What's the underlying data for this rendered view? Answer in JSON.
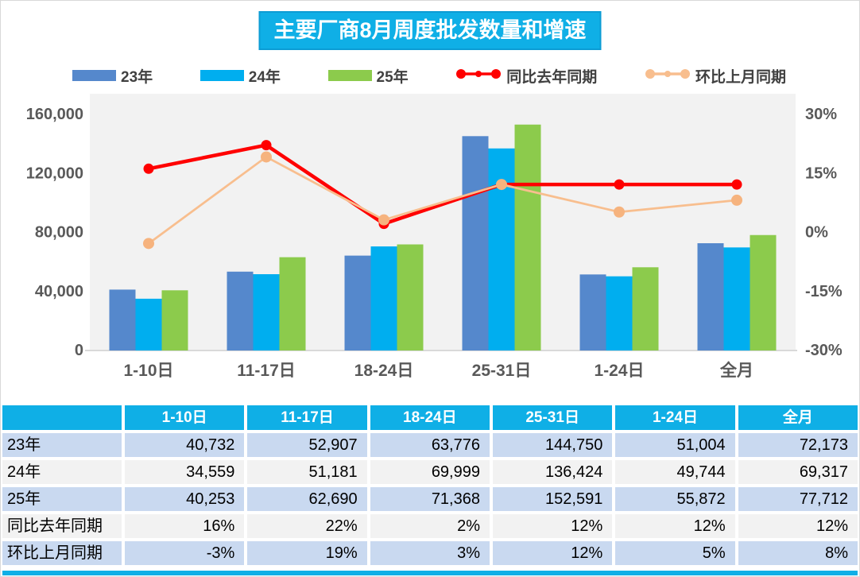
{
  "title": "主要厂商8月周度批发数量和增速",
  "colors": {
    "accent_cyan": "#0fafe6",
    "bar_23": "#5588cc",
    "bar_24": "#00aeef",
    "bar_25": "#8ccb4c",
    "line_yoy": "#ff0000",
    "line_mom": "#f8be8e",
    "line_mom_marker": "#f6b37e",
    "plot_bg": "#f2f2f2",
    "axis_text": "#595959",
    "row_blue": "#c9d9f0",
    "row_gray": "#f2f2f2"
  },
  "legend": [
    {
      "label": "23年",
      "type": "bar",
      "color": "#5588cc"
    },
    {
      "label": "24年",
      "type": "bar",
      "color": "#00aeef"
    },
    {
      "label": "25年",
      "type": "bar",
      "color": "#8ccb4c"
    },
    {
      "label": "同比去年同期",
      "type": "line",
      "color": "#ff0000"
    },
    {
      "label": "环比上月同期",
      "type": "line",
      "color": "#f8be8e"
    }
  ],
  "chart_data": {
    "type": "bar",
    "subtype": "grouped-bars-with-lines",
    "title": "主要厂商8月周度批发数量和增速",
    "categories": [
      "1-10日",
      "11-17日",
      "18-24日",
      "25-31日",
      "1-24日",
      "全月"
    ],
    "series": [
      {
        "name": "23年",
        "kind": "bar",
        "axis": "left",
        "color": "#5588cc",
        "values": [
          40732,
          52907,
          63776,
          144750,
          51004,
          72173
        ]
      },
      {
        "name": "24年",
        "kind": "bar",
        "axis": "left",
        "color": "#00aeef",
        "values": [
          34559,
          51181,
          69999,
          136424,
          49744,
          69317
        ]
      },
      {
        "name": "25年",
        "kind": "bar",
        "axis": "left",
        "color": "#8ccb4c",
        "values": [
          40253,
          62690,
          71368,
          152591,
          55872,
          77712
        ]
      },
      {
        "name": "同比去年同期",
        "kind": "line",
        "axis": "right",
        "color": "#ff0000",
        "marker_color": "#ff0000",
        "values": [
          16,
          22,
          2,
          12,
          12,
          12
        ]
      },
      {
        "name": "环比上月同期",
        "kind": "line",
        "axis": "right",
        "color": "#f8be8e",
        "marker_color": "#f6b37e",
        "values": [
          -3,
          19,
          3,
          12,
          5,
          8
        ]
      }
    ],
    "left_axis": {
      "min": 0,
      "max": 160000,
      "tick_values": [
        160000,
        120000,
        80000,
        40000,
        0
      ],
      "tick_labels": [
        "160,000",
        "120,000",
        "80,000",
        "40,000",
        "0"
      ]
    },
    "right_axis": {
      "min": -30,
      "max": 30,
      "tick_values": [
        30,
        15,
        0,
        -15,
        -30
      ],
      "tick_labels": [
        "30%",
        "15%",
        "0%",
        "-15%",
        "-30%"
      ]
    },
    "grid": false,
    "legend_position": "top"
  },
  "table": {
    "header": [
      "",
      "1-10日",
      "11-17日",
      "18-24日",
      "25-31日",
      "1-24日",
      "全月"
    ],
    "rows": [
      {
        "label": "23年",
        "values": [
          "40,732",
          "52,907",
          "63,776",
          "144,750",
          "51,004",
          "72,173"
        ]
      },
      {
        "label": "24年",
        "values": [
          "34,559",
          "51,181",
          "69,999",
          "136,424",
          "49,744",
          "69,317"
        ]
      },
      {
        "label": "25年",
        "values": [
          "40,253",
          "62,690",
          "71,368",
          "152,591",
          "55,872",
          "77,712"
        ]
      },
      {
        "label": "同比去年同期",
        "values": [
          "16%",
          "22%",
          "2%",
          "12%",
          "12%",
          "12%"
        ]
      },
      {
        "label": "环比上月同期",
        "values": [
          "-3%",
          "19%",
          "3%",
          "12%",
          "5%",
          "8%"
        ]
      }
    ]
  }
}
